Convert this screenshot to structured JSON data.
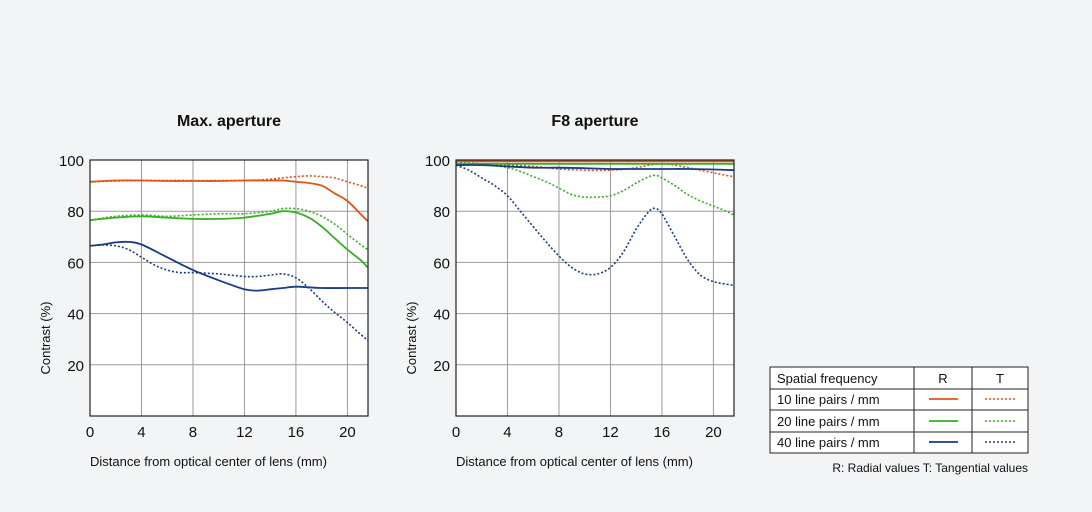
{
  "colors": {
    "line_10": "#e0541c",
    "line_20": "#35b020",
    "line_40": "#1a3a8c",
    "grid": "#9a9a9a",
    "frame": "#222222",
    "background": "#f2f4f5"
  },
  "chart_data": [
    {
      "type": "line",
      "title": "Max. aperture",
      "xlabel": "Distance from optical center of lens (mm)",
      "ylabel": "Contrast (%)",
      "xlim": [
        0,
        21.6
      ],
      "ylim": [
        0,
        100
      ],
      "xticks": [
        "0",
        "4",
        "8",
        "12",
        "16",
        "20"
      ],
      "yticks": [
        "20",
        "40",
        "60",
        "80",
        "100"
      ],
      "grid": true,
      "series": [
        {
          "name": "10 line pairs / mm",
          "type": "R",
          "color": "#e0541c",
          "dash": false,
          "x": [
            0,
            2,
            4,
            6,
            8,
            10,
            12,
            14,
            15,
            16,
            17,
            18,
            19,
            20,
            21,
            21.6
          ],
          "y": [
            91.5,
            92,
            92,
            91.8,
            91.8,
            91.8,
            92,
            92,
            92,
            91.5,
            91,
            90,
            87,
            84,
            79,
            76
          ]
        },
        {
          "name": "10 line pairs / mm",
          "type": "T",
          "color": "#e0541c",
          "dash": true,
          "x": [
            0,
            4,
            8,
            12,
            14,
            15,
            16,
            17,
            18,
            19,
            20,
            21,
            21.6
          ],
          "y": [
            91.5,
            92,
            92,
            92,
            92.5,
            93,
            93.5,
            93.8,
            93.5,
            93,
            91.5,
            90,
            89
          ]
        },
        {
          "name": "20 line pairs / mm",
          "type": "R",
          "color": "#35b020",
          "dash": false,
          "x": [
            0,
            2,
            4,
            6,
            8,
            10,
            12,
            14,
            15,
            16,
            17,
            18,
            19,
            20,
            21,
            21.6
          ],
          "y": [
            76.5,
            77.5,
            78,
            77.5,
            77,
            77,
            77.5,
            79,
            80,
            79.5,
            77.5,
            74,
            69.5,
            65,
            61,
            58
          ]
        },
        {
          "name": "20 line pairs / mm",
          "type": "T",
          "color": "#35b020",
          "dash": true,
          "x": [
            0,
            2,
            4,
            6,
            8,
            10,
            12,
            14,
            15,
            16,
            17,
            18,
            19,
            20,
            21,
            21.6
          ],
          "y": [
            76.5,
            78,
            78.5,
            78,
            78.5,
            79,
            79,
            80,
            81,
            81,
            80,
            78,
            75,
            71,
            67,
            65
          ]
        },
        {
          "name": "40 line pairs / mm",
          "type": "R",
          "color": "#1a3a8c",
          "dash": false,
          "x": [
            0,
            1,
            2,
            3,
            4,
            6,
            8,
            10,
            12,
            13,
            14,
            15,
            16,
            18,
            20,
            21.6
          ],
          "y": [
            66.5,
            67,
            67.8,
            68,
            67,
            62,
            57,
            53,
            49.5,
            49,
            49.5,
            50,
            50.5,
            50,
            50,
            50
          ]
        },
        {
          "name": "40 line pairs / mm",
          "type": "T",
          "color": "#1a3a8c",
          "dash": true,
          "x": [
            0,
            1,
            2,
            3,
            4,
            5,
            6,
            7,
            8,
            10,
            12,
            13,
            14,
            15,
            16,
            17,
            18,
            19,
            20,
            21,
            21.6
          ],
          "y": [
            66.5,
            66.8,
            66.5,
            65,
            62,
            59,
            57,
            56,
            56,
            55.5,
            54.5,
            54.5,
            55,
            55.5,
            54,
            50,
            45,
            40.5,
            36.5,
            32,
            29.5
          ]
        }
      ]
    },
    {
      "type": "line",
      "title": "F8 aperture",
      "xlabel": "Distance from optical center of lens (mm)",
      "ylabel": "Contrast (%)",
      "xlim": [
        0,
        21.6
      ],
      "ylim": [
        0,
        100
      ],
      "xticks": [
        "0",
        "4",
        "8",
        "12",
        "16",
        "20"
      ],
      "yticks": [
        "20",
        "40",
        "60",
        "80",
        "100"
      ],
      "grid": true,
      "series": [
        {
          "name": "10 line pairs / mm",
          "type": "R",
          "color": "#e0541c",
          "dash": false,
          "x": [
            0,
            4,
            8,
            12,
            16,
            20,
            21.6
          ],
          "y": [
            99.5,
            99.5,
            99.5,
            99.5,
            99.5,
            99.5,
            99.5
          ]
        },
        {
          "name": "10 line pairs / mm",
          "type": "T",
          "color": "#e0541c",
          "dash": true,
          "x": [
            0,
            2,
            4,
            6,
            8,
            10,
            12,
            14,
            15,
            16,
            17,
            18,
            19,
            20,
            21,
            21.6
          ],
          "y": [
            98.5,
            98.5,
            98,
            97.5,
            96.5,
            96,
            96,
            97,
            98,
            98.5,
            98,
            97,
            96,
            95,
            94,
            93.5
          ]
        },
        {
          "name": "20 line pairs / mm",
          "type": "R",
          "color": "#35b020",
          "dash": false,
          "x": [
            0,
            4,
            8,
            12,
            16,
            20,
            21.6
          ],
          "y": [
            98.5,
            98.5,
            98.5,
            98.5,
            98.5,
            98.5,
            98.5
          ]
        },
        {
          "name": "20 line pairs / mm",
          "type": "T",
          "color": "#35b020",
          "dash": true,
          "x": [
            0,
            2,
            4,
            5,
            6,
            7,
            8,
            9,
            10,
            11,
            12,
            13,
            14,
            15,
            15.5,
            16,
            17,
            18,
            19,
            20,
            21,
            21.6
          ],
          "y": [
            99,
            98.5,
            97,
            95.5,
            93.5,
            91.5,
            89,
            86.5,
            85.5,
            85.5,
            86,
            88,
            91,
            93.5,
            94,
            93,
            90,
            86.5,
            84,
            82,
            80,
            78.5
          ]
        },
        {
          "name": "40 line pairs / mm",
          "type": "R",
          "color": "#1a3a8c",
          "dash": false,
          "x": [
            0,
            2,
            4,
            6,
            8,
            10,
            12,
            14,
            16,
            18,
            20,
            21.6
          ],
          "y": [
            98,
            98,
            97.5,
            97,
            97,
            96.8,
            96.5,
            96.5,
            96.5,
            96.5,
            96.3,
            96
          ]
        },
        {
          "name": "40 line pairs / mm",
          "type": "T",
          "color": "#1a3a8c",
          "dash": true,
          "x": [
            0,
            1,
            2,
            3,
            4,
            5,
            6,
            7,
            8,
            9,
            10,
            11,
            12,
            13,
            14,
            15,
            15.5,
            16,
            17,
            18,
            19,
            20,
            21,
            21.6
          ],
          "y": [
            98,
            96,
            93,
            90,
            86,
            80,
            74,
            68,
            62.5,
            58,
            55.5,
            55.5,
            58,
            64,
            73,
            80,
            81,
            79,
            70,
            61,
            55,
            52.5,
            51.5,
            51
          ]
        }
      ]
    }
  ],
  "legend": {
    "header": {
      "label": "Spatial frequency",
      "r": "R",
      "t": "T"
    },
    "rows": [
      {
        "label": "10 line pairs / mm",
        "color": "#e0541c"
      },
      {
        "label": "20 line pairs / mm",
        "color": "#35b020"
      },
      {
        "label": "40 line pairs / mm",
        "color": "#1a3a8c"
      }
    ],
    "note": "R: Radial values  T: Tangential values"
  }
}
